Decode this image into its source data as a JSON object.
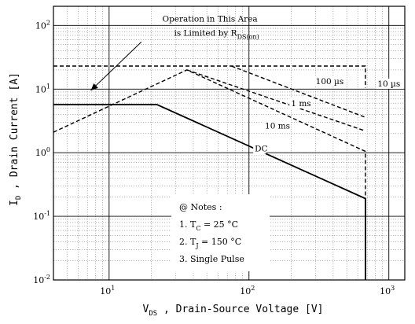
{
  "chart_data": {
    "type": "line",
    "x_scale": "log",
    "y_scale": "log",
    "xlim": [
      4,
      1300
    ],
    "ylim": [
      0.01,
      200
    ],
    "grid": true,
    "xlabel": {
      "parts": [
        {
          "t": "V",
          "sub": false
        },
        {
          "t": "DS",
          "sub": true
        },
        {
          "t": " , Drain-Source Voltage  [V]",
          "sub": false
        }
      ]
    },
    "ylabel": {
      "parts": [
        {
          "t": "I",
          "sub": false
        },
        {
          "t": "D",
          "sub": true
        },
        {
          "t": " , Drain Current  [A]",
          "sub": false
        }
      ]
    },
    "xticks": [
      {
        "v": 10,
        "base": "10",
        "exp": "1"
      },
      {
        "v": 100,
        "base": "10",
        "exp": "2"
      },
      {
        "v": 1000,
        "base": "10",
        "exp": "3"
      }
    ],
    "yticks": [
      {
        "v": 0.01,
        "base": "10",
        "exp": "-2"
      },
      {
        "v": 0.1,
        "base": "10",
        "exp": "-1"
      },
      {
        "v": 1,
        "base": "10",
        "exp": "0"
      },
      {
        "v": 10,
        "base": "10",
        "exp": "1"
      },
      {
        "v": 100,
        "base": "10",
        "exp": "2"
      }
    ],
    "series": [
      {
        "label": "DC",
        "dash": false,
        "points": [
          [
            4,
            5.7
          ],
          [
            22,
            5.7
          ],
          [
            680,
            0.19
          ],
          [
            680,
            0.01
          ]
        ],
        "label_at": [
          110,
          1.05
        ]
      },
      {
        "label": "10 ms",
        "dash": true,
        "points": [
          [
            4,
            2.1
          ],
          [
            36,
            20
          ],
          [
            680,
            1.05
          ],
          [
            680,
            0.01
          ]
        ],
        "label_at": [
          130,
          2.4
        ]
      },
      {
        "label": "1 ms",
        "dash": true,
        "points": [
          [
            36,
            20
          ],
          [
            680,
            2.2
          ]
        ],
        "label_at": [
          200,
          5.4
        ]
      },
      {
        "label": "100 µs",
        "dash": true,
        "points": [
          [
            75,
            23
          ],
          [
            680,
            3.6
          ]
        ],
        "label_at": [
          300,
          12
        ]
      },
      {
        "label": "10 µs",
        "dash": true,
        "points": [
          [
            4,
            23
          ],
          [
            680,
            23
          ],
          [
            680,
            10.5
          ]
        ],
        "label_at": [
          830,
          11
        ]
      }
    ],
    "annotation": {
      "line1": "Operation in This Area",
      "line2_main": "is Limited by R",
      "line2_sub": "DS(on)",
      "at": [
        24,
        115
      ],
      "arrow_from": [
        17,
        55
      ],
      "arrow_to": [
        7.4,
        9.5
      ]
    },
    "notes": {
      "title": "@ Notes :",
      "items": [
        {
          "pre": "1. T",
          "sub": "C",
          "post": " = 25 °C"
        },
        {
          "pre": "2. T",
          "sub": "J",
          "post": " = 150 °C"
        },
        {
          "pre": "3. Single Pulse",
          "sub": "",
          "post": ""
        }
      ]
    }
  }
}
